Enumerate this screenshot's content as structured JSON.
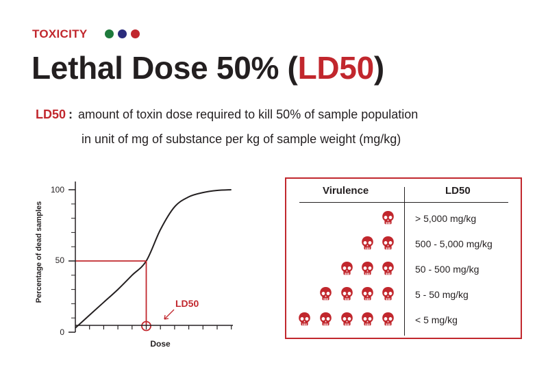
{
  "header": {
    "category": "TOXICITY",
    "dot_colors": [
      "#1e7a3c",
      "#2b2c7c",
      "#c1272d"
    ],
    "title_main": "Lethal Dose 50% (",
    "title_accent": "LD50",
    "title_end": ")"
  },
  "definition": {
    "term": "LD50",
    "colon": ":",
    "line1": "amount of toxin dose required to kill 50% of sample population",
    "line2": "in unit of mg of substance per kg of sample weight (mg/kg)"
  },
  "chart_data": {
    "type": "line",
    "ylabel": "Percentage of dead samples",
    "xlabel": "Dose",
    "ytick_labels": [
      "0",
      "50",
      "100"
    ],
    "ylim": [
      0,
      100
    ],
    "x": [
      0,
      1,
      2,
      3,
      4,
      5,
      6,
      7,
      8,
      9,
      10,
      11
    ],
    "y": [
      3,
      12,
      21,
      30,
      40,
      50,
      72,
      88,
      95,
      98,
      99.5,
      100
    ],
    "annotation": "LD50",
    "annotation_x": 5,
    "annotation_y": 50,
    "line_color": "#231f20",
    "marker_color": "#c1272d"
  },
  "table": {
    "col1": "Virulence",
    "col2": "LD50",
    "skull_color": "#c1272d",
    "rows": [
      {
        "count": 1,
        "label": "> 5,000 mg/kg"
      },
      {
        "count": 2,
        "label": "500 - 5,000 mg/kg"
      },
      {
        "count": 3,
        "label": "50 - 500 mg/kg"
      },
      {
        "count": 4,
        "label": "5 - 50 mg/kg"
      },
      {
        "count": 5,
        "label": "< 5 mg/kg"
      }
    ]
  }
}
